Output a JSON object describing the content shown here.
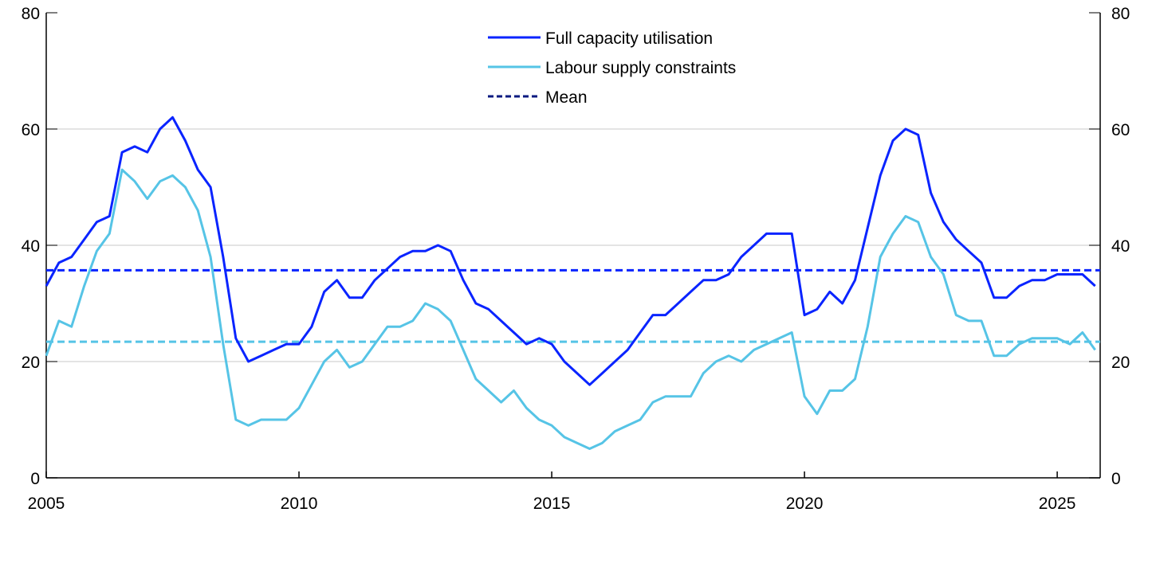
{
  "chart_data": {
    "type": "line",
    "title": "",
    "xlabel": "",
    "ylabel": "",
    "xlim": [
      2005,
      2025.85
    ],
    "ylim": [
      0,
      80
    ],
    "grid": true,
    "legend_placement": "top-center",
    "x_ticks": [
      "2005",
      "2010",
      "2015",
      "2020",
      "2025"
    ],
    "y_ticks": [
      "0",
      "20",
      "40",
      "60",
      "80"
    ],
    "y_ticks_right": [
      "0",
      "20",
      "40",
      "60",
      "80"
    ],
    "x_start": 2005,
    "x_step": 0.25,
    "series": [
      {
        "name": "Full capacity utilisation",
        "color": "#0a24ff",
        "values": [
          33,
          37,
          38,
          41,
          44,
          45,
          56,
          57,
          56,
          60,
          62,
          58,
          53,
          50,
          38,
          24,
          20,
          21,
          22,
          23,
          23,
          26,
          32,
          34,
          31,
          31,
          34,
          36,
          38,
          39,
          39,
          40,
          39,
          34,
          30,
          29,
          27,
          25,
          23,
          24,
          23,
          20,
          18,
          16,
          18,
          20,
          22,
          25,
          28,
          28,
          30,
          32,
          34,
          34,
          35,
          38,
          40,
          42,
          42,
          42,
          28,
          29,
          32,
          30,
          34,
          43,
          52,
          58,
          60,
          59,
          49,
          44,
          41,
          39,
          37,
          31,
          31,
          33,
          34,
          34,
          35,
          35,
          35,
          33
        ],
        "mean": 35.7
      },
      {
        "name": "Labour supply constraints",
        "color": "#56c4e6",
        "values": [
          21,
          27,
          26,
          33,
          39,
          42,
          53,
          51,
          48,
          51,
          52,
          50,
          46,
          38,
          23,
          10,
          9,
          10,
          10,
          10,
          12,
          16,
          20,
          22,
          19,
          20,
          23,
          26,
          26,
          27,
          30,
          29,
          27,
          22,
          17,
          15,
          13,
          15,
          12,
          10,
          9,
          7,
          6,
          5,
          6,
          8,
          9,
          10,
          13,
          14,
          14,
          14,
          18,
          20,
          21,
          20,
          22,
          23,
          24,
          25,
          14,
          11,
          15,
          15,
          17,
          26,
          38,
          42,
          45,
          44,
          38,
          35,
          28,
          27,
          27,
          21,
          21,
          23,
          24,
          24,
          24,
          23,
          25,
          22
        ],
        "mean": 23.4
      }
    ],
    "legend": [
      {
        "label": "Full capacity utilisation",
        "color": "#0a24ff",
        "style": "solid"
      },
      {
        "label": "Labour supply constraints",
        "color": "#56c4e6",
        "style": "solid"
      },
      {
        "label": "Mean",
        "color": "#0a1a80",
        "style": "dashed"
      }
    ],
    "colors": {
      "grid": "#dcdcdc",
      "axis": "#000000"
    }
  }
}
